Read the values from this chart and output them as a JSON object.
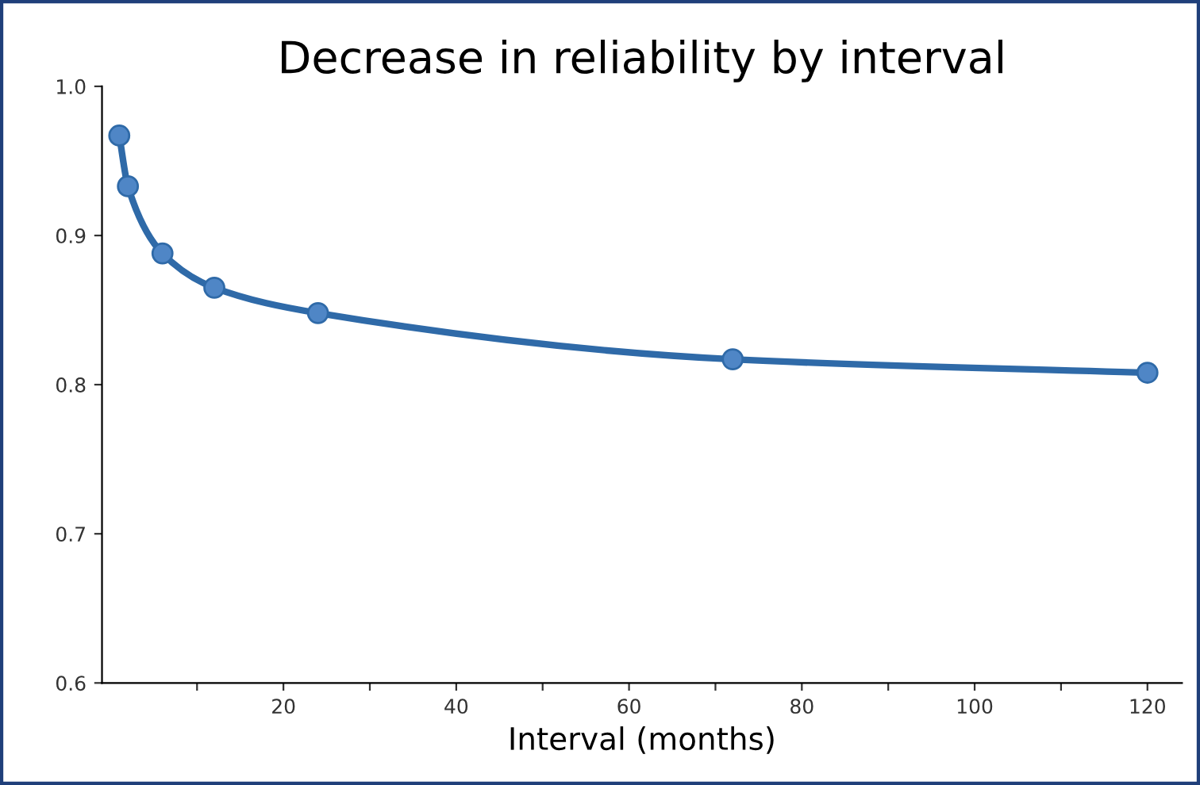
{
  "chart_data": {
    "type": "line",
    "title": "Decrease in reliability by interval",
    "xlabel": "Interval (months)",
    "x": [
      1,
      2,
      6,
      12,
      24,
      72,
      120
    ],
    "series": [
      {
        "color": "#2f6aa8",
        "values": [
          0.967,
          0.933,
          0.888,
          0.865,
          0.848,
          0.817,
          0.808
        ]
      }
    ],
    "marker": "circle",
    "line_style": "solid",
    "grid": false,
    "legend": false,
    "xlim": [
      -1,
      124
    ],
    "xticks": [
      {
        "value": 10,
        "label": null
      },
      20,
      {
        "value": 30,
        "label": null
      },
      40,
      {
        "value": 50,
        "label": null
      },
      60,
      {
        "value": 70,
        "label": null
      },
      80,
      {
        "value": 90,
        "label": null
      },
      100,
      {
        "value": 110,
        "label": null
      },
      120
    ],
    "ylim": [
      0.6,
      1.0
    ],
    "yticks": [
      0.6,
      0.7,
      0.8,
      0.9,
      {
        "value": 1,
        "label": "1.0"
      }
    ]
  }
}
